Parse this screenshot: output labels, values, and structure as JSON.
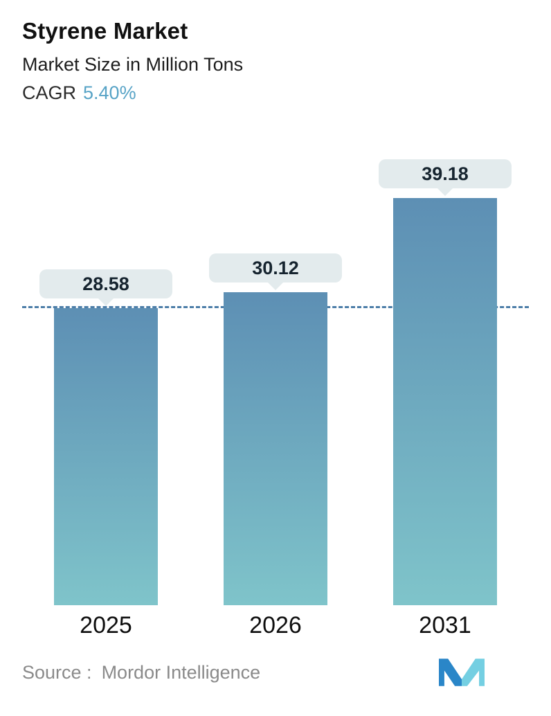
{
  "header": {
    "title": "Styrene Market",
    "subtitle": "Market Size in Million Tons",
    "cagr_label": "CAGR",
    "cagr_value": "5.40%"
  },
  "chart_data": {
    "type": "bar",
    "categories": [
      "2025",
      "2026",
      "2031"
    ],
    "values": [
      28.58,
      30.12,
      39.18
    ],
    "value_labels": [
      "28.58",
      "30.12",
      "39.18"
    ],
    "title": "Styrene Market",
    "subtitle": "Market Size in Million Tons",
    "cagr": "5.40%",
    "xlabel": "",
    "ylabel": "Market Size in Million Tons",
    "ylim": [
      0,
      42
    ],
    "baseline_value": 28.58,
    "grid": false,
    "legend": false,
    "annotations": "dashed horizontal reference line at the 2025 value"
  },
  "footer": {
    "source_label": "Source :",
    "source_value": "Mordor Intelligence",
    "logo_name": "mordor-intelligence-logo"
  },
  "colors": {
    "bar_top": "#5d8fb4",
    "bar_bottom": "#7fc4ca",
    "bubble_bg": "#e3ebed",
    "dashed_line": "#4d7ea8",
    "cagr_value": "#57a3c6",
    "source_text": "#8a8a8a",
    "logo_blue": "#2a86c8",
    "logo_teal": "#74cfe2"
  }
}
